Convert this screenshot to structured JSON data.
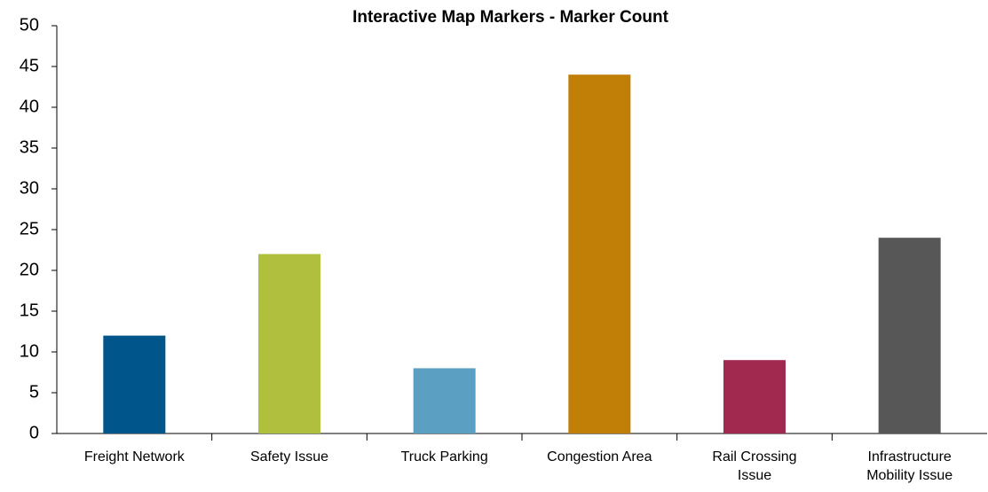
{
  "chart_data": {
    "type": "bar",
    "title": "Interactive Map Markers - Marker Count",
    "categories": [
      "Freight Network",
      "Safety Issue",
      "Truck Parking",
      "Congestion Area",
      "Rail Crossing Issue",
      "Infrastructure Mobility Issue"
    ],
    "values": [
      12,
      22,
      8,
      44,
      9,
      24
    ],
    "colors": [
      "#00568a",
      "#b0bf3e",
      "#5b9fc2",
      "#c17f07",
      "#a1284f",
      "#575757"
    ],
    "ylim": [
      0,
      50
    ],
    "yticks": [
      0,
      5,
      10,
      15,
      20,
      25,
      30,
      35,
      40,
      45,
      50
    ],
    "grid": false
  }
}
